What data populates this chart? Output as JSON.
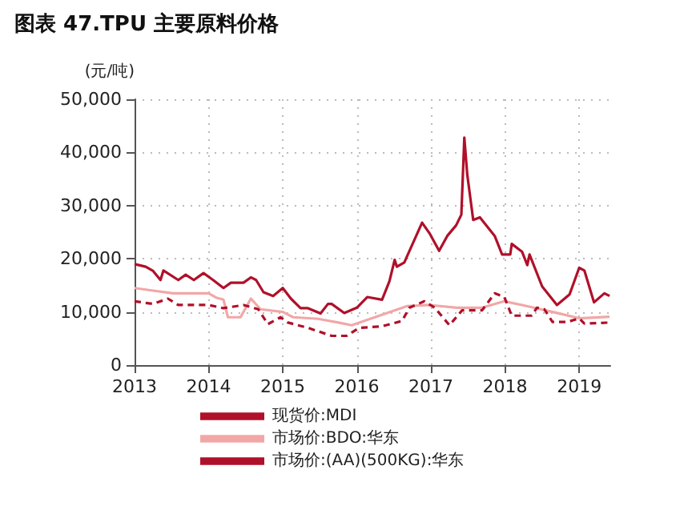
{
  "chart_data": {
    "type": "line",
    "title": "图表 47.TPU 主要原料价格",
    "ylabel": "(元/吨)",
    "xlim": [
      2013,
      2019.42
    ],
    "xticks": [
      2013,
      2014,
      2015,
      2016,
      2017,
      2018,
      2019
    ],
    "ylim": [
      0,
      50000
    ],
    "yticks": [
      {
        "value": 0,
        "label": "0"
      },
      {
        "value": 10000,
        "label": "10,000"
      },
      {
        "value": 20000,
        "label": "20,000"
      },
      {
        "value": 30000,
        "label": "30,000"
      },
      {
        "value": 40000,
        "label": "40,000"
      },
      {
        "value": 50000,
        "label": "50,000"
      }
    ],
    "grid": true,
    "legend": "bottom",
    "marker": "none",
    "series": [
      {
        "name": "现货价:MDI",
        "color": "#b0102a",
        "line_style": "solid",
        "x": [
          2013.0,
          2013.15,
          2013.25,
          2013.35,
          2013.39,
          2013.59,
          2013.69,
          2013.8,
          2013.93,
          2014.06,
          2014.2,
          2014.3,
          2014.47,
          2014.57,
          2014.64,
          2014.74,
          2014.87,
          2015.0,
          2015.11,
          2015.24,
          2015.34,
          2015.51,
          2015.61,
          2015.66,
          2015.83,
          2016.0,
          2016.14,
          2016.34,
          2016.44,
          2016.51,
          2016.54,
          2016.64,
          2016.88,
          2016.98,
          2017.11,
          2017.22,
          2017.34,
          2017.41,
          2017.45,
          2017.49,
          2017.57,
          2017.66,
          2017.86,
          2017.96,
          2018.07,
          2018.09,
          2018.23,
          2018.3,
          2018.33,
          2018.5,
          2018.7,
          2018.87,
          2019.0,
          2019.07,
          2019.2,
          2019.34,
          2019.41
        ],
        "values": [
          19000,
          18500,
          17700,
          16000,
          17800,
          16000,
          17000,
          16000,
          17300,
          16000,
          14500,
          15500,
          15500,
          16500,
          16000,
          13700,
          13000,
          14500,
          12500,
          10700,
          10700,
          9700,
          11500,
          11500,
          9800,
          10800,
          12800,
          12300,
          15800,
          19800,
          18500,
          19300,
          26800,
          24800,
          21500,
          24300,
          26300,
          28300,
          42800,
          35800,
          27300,
          27800,
          24300,
          20800,
          20800,
          22800,
          21300,
          18800,
          20800,
          14800,
          11300,
          13300,
          18300,
          17800,
          11800,
          13500,
          13000
        ]
      },
      {
        "name": "市场价:BDO:华东",
        "color": "#f2a7a7",
        "line_style": "solid",
        "x": [
          2013.0,
          2013.25,
          2013.52,
          2014.0,
          2014.1,
          2014.2,
          2014.26,
          2014.43,
          2014.57,
          2014.7,
          2015.0,
          2015.14,
          2015.48,
          2015.75,
          2015.93,
          2016.68,
          2016.98,
          2017.35,
          2017.69,
          2017.99,
          2018.23,
          2018.7,
          2019.0,
          2019.41
        ],
        "values": [
          14500,
          14000,
          13500,
          13500,
          12700,
          12300,
          9000,
          9000,
          12500,
          10500,
          10000,
          9000,
          8700,
          8000,
          7500,
          11100,
          11300,
          10800,
          10800,
          12000,
          11300,
          9800,
          8800,
          9100
        ]
      },
      {
        "name": "市场价:(AA)(500KG):华东",
        "color": "#b0102a",
        "line_style": "dashed",
        "x": [
          2013.0,
          2013.25,
          2013.45,
          2013.59,
          2014.0,
          2014.2,
          2014.47,
          2014.67,
          2014.8,
          2014.97,
          2015.07,
          2015.34,
          2015.66,
          2015.86,
          2016.03,
          2016.34,
          2016.61,
          2016.71,
          2016.91,
          2017.05,
          2017.25,
          2017.42,
          2017.69,
          2017.86,
          2017.99,
          2018.09,
          2018.36,
          2018.43,
          2018.53,
          2018.64,
          2018.84,
          2019.0,
          2019.07,
          2019.41
        ],
        "values": [
          12000,
          11500,
          12500,
          11300,
          11300,
          10700,
          11300,
          10500,
          7700,
          9000,
          8000,
          7000,
          5500,
          5500,
          7000,
          7300,
          8300,
          10800,
          12000,
          10800,
          7500,
          10300,
          10300,
          13500,
          12800,
          9300,
          9300,
          10800,
          10500,
          8100,
          8100,
          8800,
          7800,
          8000
        ]
      }
    ]
  }
}
